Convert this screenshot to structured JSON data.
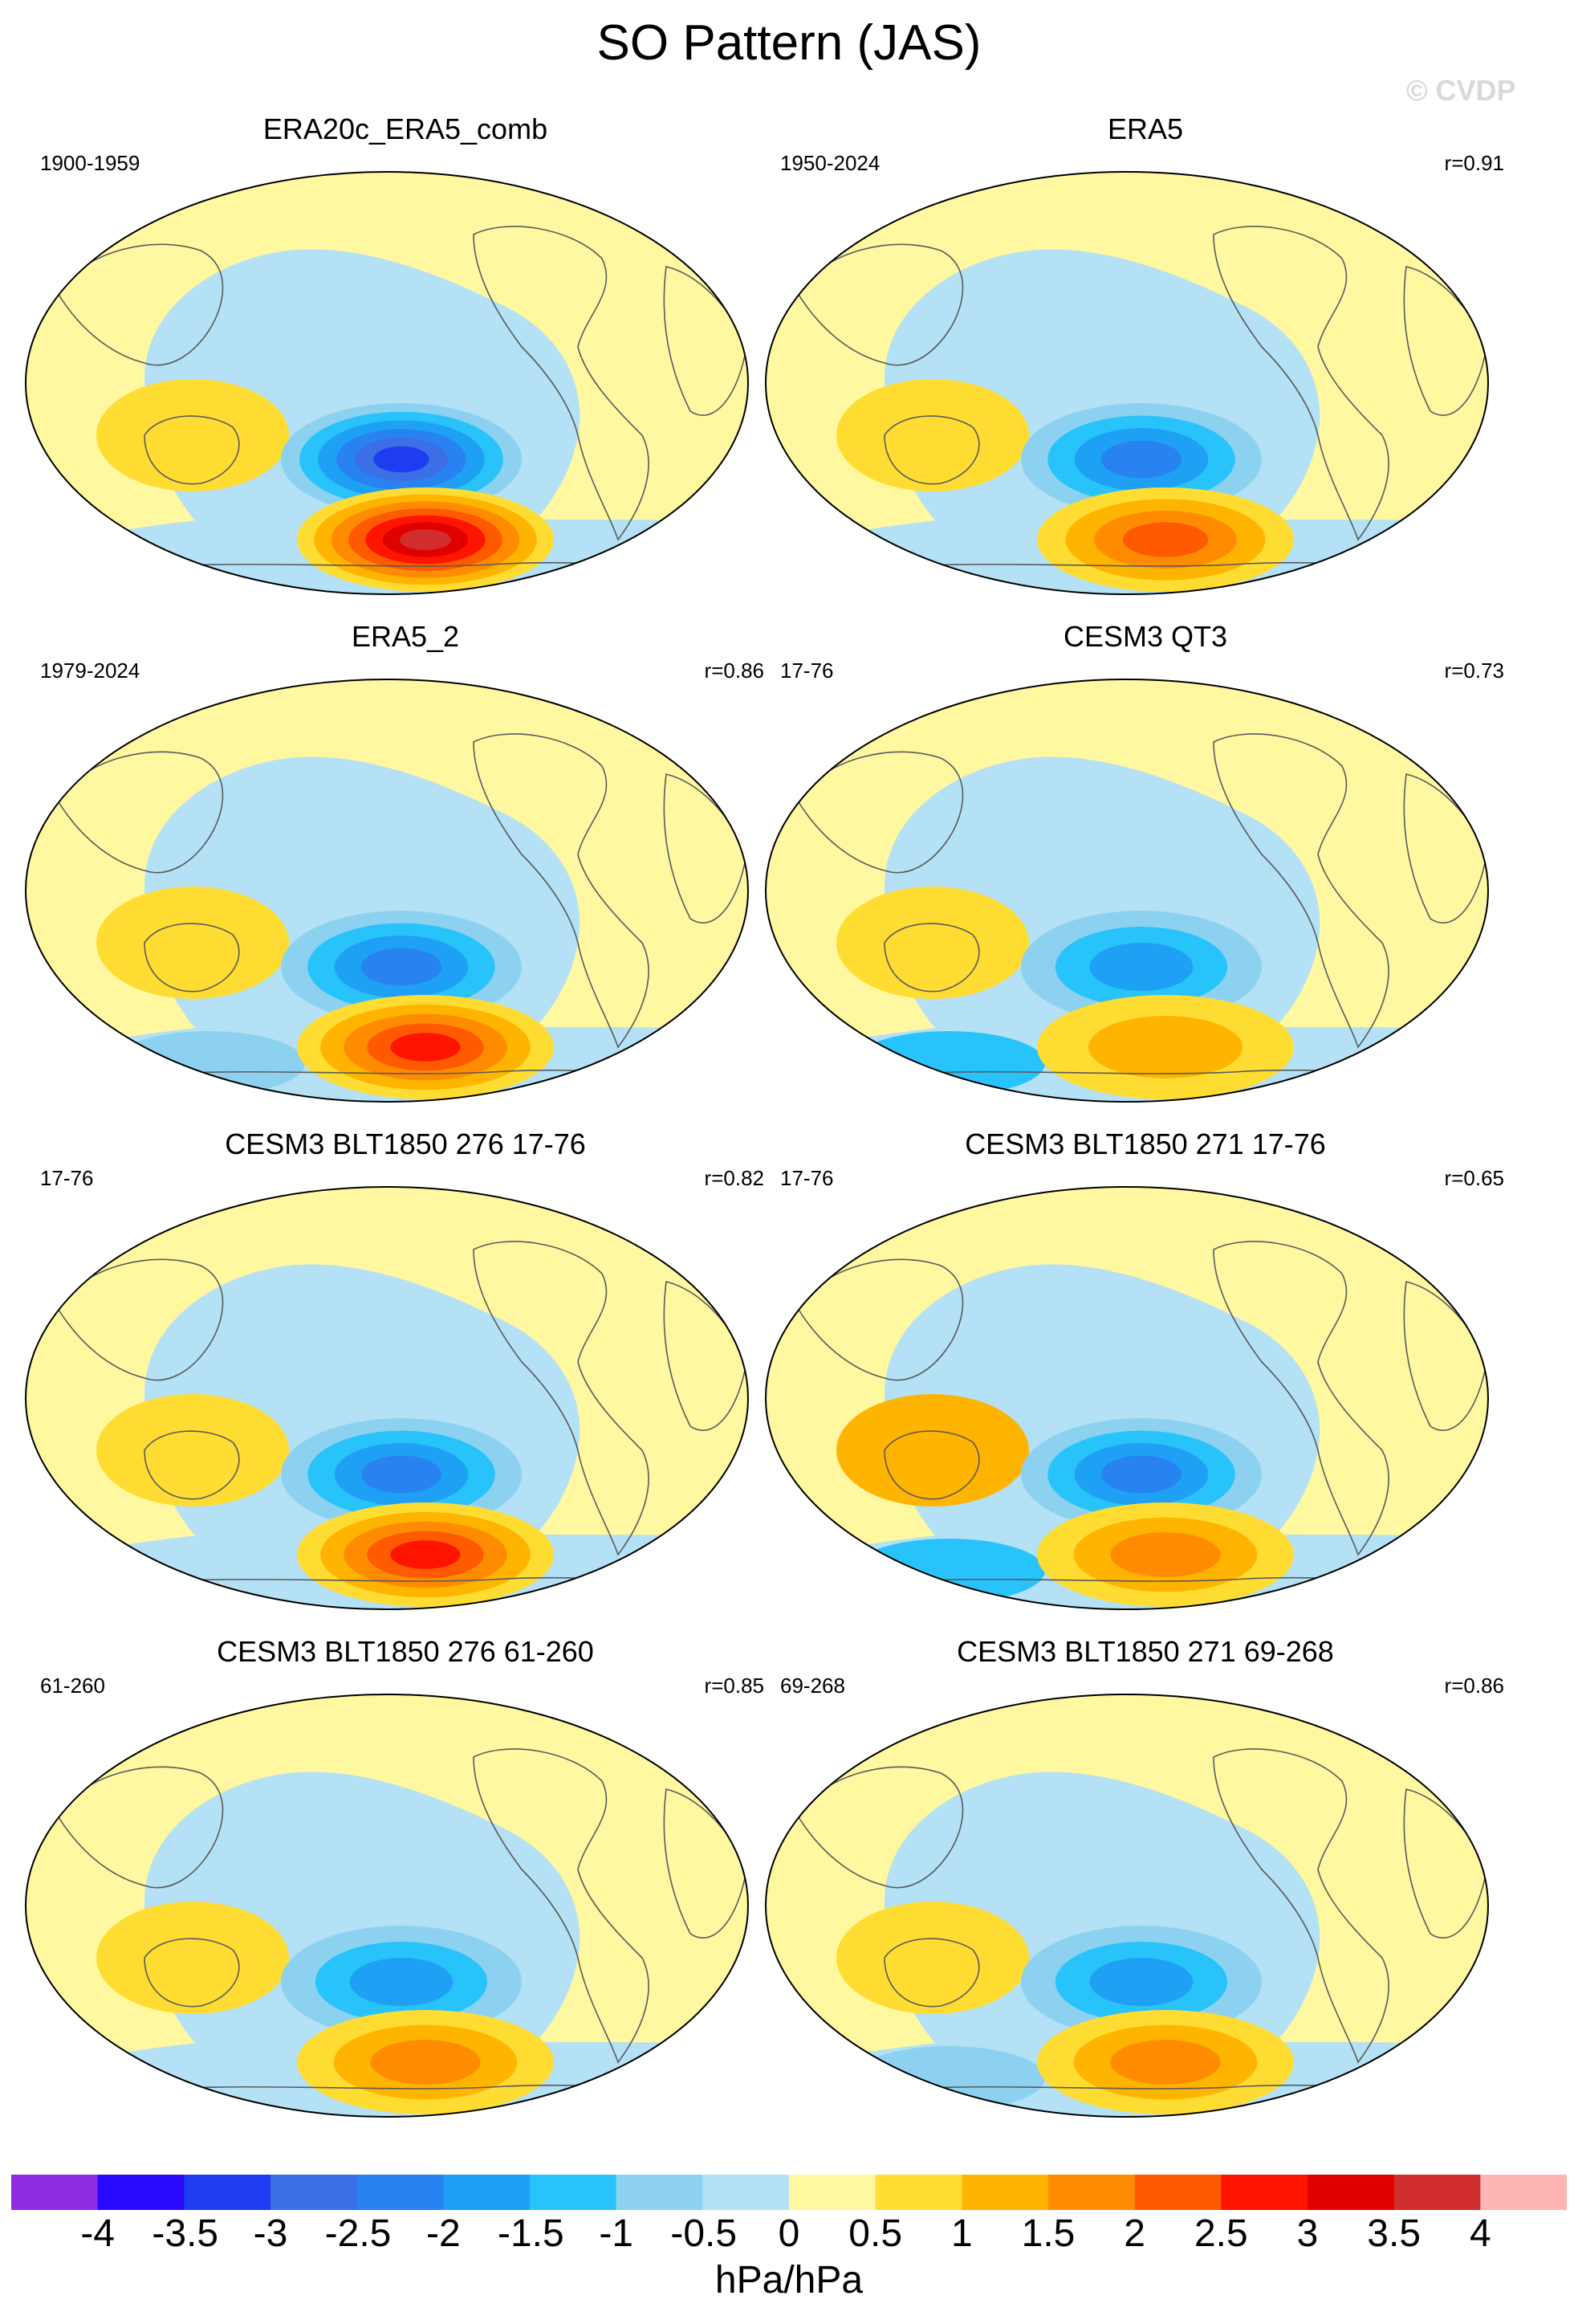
{
  "figure": {
    "title": "SO Pattern (JAS)",
    "watermark": "© CVDP",
    "units": "hPa/hPa"
  },
  "panels": [
    {
      "title": "ERA20c_ERA5_comb",
      "years": "1900-1959",
      "corr": "",
      "neg_core": -3.0,
      "pos_core": 3.5,
      "tropic_pos": 1.0,
      "antarctic_neg": -0.5
    },
    {
      "title": "ERA5",
      "years": "1950-2024",
      "corr": "r=0.91",
      "neg_core": -2.0,
      "pos_core": 2.0,
      "tropic_pos": 1.0,
      "antarctic_neg": -0.5
    },
    {
      "title": "ERA5_2",
      "years": "1979-2024",
      "corr": "r=0.86",
      "neg_core": -2.0,
      "pos_core": 2.5,
      "tropic_pos": 1.0,
      "antarctic_neg": -1.0
    },
    {
      "title": "CESM3 QT3",
      "years": "17-76",
      "corr": "r=0.73",
      "neg_core": -1.5,
      "pos_core": 1.0,
      "tropic_pos": 1.0,
      "antarctic_neg": -1.5
    },
    {
      "title": "CESM3 BLT1850 276 17-76",
      "years": "17-76",
      "corr": "r=0.82",
      "neg_core": -2.0,
      "pos_core": 2.5,
      "tropic_pos": 1.0,
      "antarctic_neg": -0.5
    },
    {
      "title": "CESM3 BLT1850 271 17-76",
      "years": "17-76",
      "corr": "r=0.65",
      "neg_core": -2.0,
      "pos_core": 1.5,
      "tropic_pos": 1.5,
      "antarctic_neg": -1.5
    },
    {
      "title": "CESM3 BLT1850 276 61-260",
      "years": "61-260",
      "corr": "r=0.85",
      "neg_core": -1.5,
      "pos_core": 1.5,
      "tropic_pos": 1.0,
      "antarctic_neg": -0.5
    },
    {
      "title": "CESM3 BLT1850 271 69-268",
      "years": "69-268",
      "corr": "r=0.86",
      "neg_core": -1.5,
      "pos_core": 1.5,
      "tropic_pos": 1.0,
      "antarctic_neg": -1.0
    }
  ],
  "colorbar": {
    "levels": [
      "-4",
      "-3.5",
      "-3",
      "-2.5",
      "-2",
      "-1.5",
      "-1",
      "-0.5",
      "0",
      "0.5",
      "1",
      "1.5",
      "2",
      "2.5",
      "3",
      "3.5",
      "4"
    ],
    "colors": [
      "#8c2be2",
      "#2a0aff",
      "#1e3cf0",
      "#3c6ee6",
      "#2882f0",
      "#1ea0f5",
      "#28c3fa",
      "#8cd2f0",
      "#b4e1f5",
      "#fff8a0",
      "#ffdc32",
      "#ffb400",
      "#ff8c00",
      "#ff5a00",
      "#ff1400",
      "#e10000",
      "#d22d2d",
      "#ffb4b4"
    ]
  }
}
